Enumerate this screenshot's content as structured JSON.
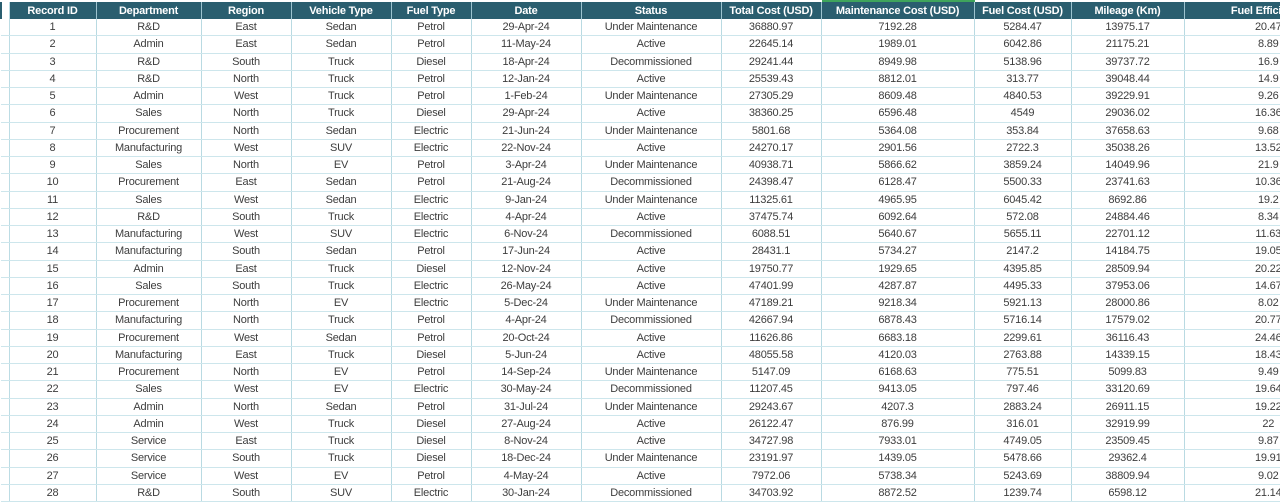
{
  "app": {
    "type": "spreadsheet-data-table"
  },
  "colors": {
    "header_bg": "#2A5E6F",
    "header_text": "#FFFFFF",
    "grid_line_vertical": "#B9DAE2",
    "grid_line_horizontal": "#CDE6EC",
    "accent_green": "#3FA45C",
    "cell_text": "#3D3D3D",
    "background": "#FFFFFF"
  },
  "table": {
    "columns": [
      {
        "key": "record_id",
        "label": "Record ID"
      },
      {
        "key": "department",
        "label": "Department"
      },
      {
        "key": "region",
        "label": "Region"
      },
      {
        "key": "vehicle_type",
        "label": "Vehicle Type"
      },
      {
        "key": "fuel_type",
        "label": "Fuel Type"
      },
      {
        "key": "date",
        "label": "Date"
      },
      {
        "key": "status",
        "label": "Status"
      },
      {
        "key": "total_cost_usd",
        "label": "Total Cost (USD)"
      },
      {
        "key": "maintenance_cost_usd",
        "label": "Maintenance Cost (USD)",
        "accent_top": true
      },
      {
        "key": "fuel_cost_usd",
        "label": "Fuel Cost (USD)"
      },
      {
        "key": "mileage_km",
        "label": "Mileage (Km)"
      },
      {
        "key": "fuel_efficiency",
        "label": "Fuel Efficiency",
        "clipped_right": true
      }
    ],
    "rows": [
      [
        "1",
        "R&D",
        "East",
        "Sedan",
        "Petrol",
        "29-Apr-24",
        "Under Maintenance",
        "36880.97",
        "7192.28",
        "5284.47",
        "13975.17",
        "20.47"
      ],
      [
        "2",
        "Admin",
        "East",
        "Sedan",
        "Petrol",
        "11-May-24",
        "Active",
        "22645.14",
        "1989.01",
        "6042.86",
        "21175.21",
        "8.89"
      ],
      [
        "3",
        "R&D",
        "South",
        "Truck",
        "Diesel",
        "18-Apr-24",
        "Decommissioned",
        "29241.44",
        "8949.98",
        "5138.96",
        "39737.72",
        "16.9"
      ],
      [
        "4",
        "R&D",
        "North",
        "Truck",
        "Petrol",
        "12-Jan-24",
        "Active",
        "25539.43",
        "8812.01",
        "313.77",
        "39048.44",
        "14.9"
      ],
      [
        "5",
        "Admin",
        "West",
        "Truck",
        "Petrol",
        "1-Feb-24",
        "Under Maintenance",
        "27305.29",
        "8609.48",
        "4840.53",
        "39229.91",
        "9.26"
      ],
      [
        "6",
        "Sales",
        "North",
        "Truck",
        "Diesel",
        "29-Apr-24",
        "Active",
        "38360.25",
        "6596.48",
        "4549",
        "29036.02",
        "16.36"
      ],
      [
        "7",
        "Procurement",
        "North",
        "Sedan",
        "Electric",
        "21-Jun-24",
        "Under Maintenance",
        "5801.68",
        "5364.08",
        "353.84",
        "37658.63",
        "9.68"
      ],
      [
        "8",
        "Manufacturing",
        "West",
        "SUV",
        "Electric",
        "22-Nov-24",
        "Active",
        "24270.17",
        "2901.56",
        "2722.3",
        "35038.26",
        "13.52"
      ],
      [
        "9",
        "Sales",
        "North",
        "EV",
        "Petrol",
        "3-Apr-24",
        "Under Maintenance",
        "40938.71",
        "5866.62",
        "3859.24",
        "14049.96",
        "21.9"
      ],
      [
        "10",
        "Procurement",
        "East",
        "Sedan",
        "Petrol",
        "21-Aug-24",
        "Decommissioned",
        "24398.47",
        "6128.47",
        "5500.33",
        "23741.63",
        "10.36"
      ],
      [
        "11",
        "Sales",
        "West",
        "Sedan",
        "Electric",
        "9-Jan-24",
        "Under Maintenance",
        "11325.61",
        "4965.95",
        "6045.42",
        "8692.86",
        "19.2"
      ],
      [
        "12",
        "R&D",
        "South",
        "Truck",
        "Electric",
        "4-Apr-24",
        "Active",
        "37475.74",
        "6092.64",
        "572.08",
        "24884.46",
        "8.34"
      ],
      [
        "13",
        "Manufacturing",
        "West",
        "SUV",
        "Electric",
        "6-Nov-24",
        "Decommissioned",
        "6088.51",
        "5640.67",
        "5655.11",
        "22701.12",
        "11.63"
      ],
      [
        "14",
        "Manufacturing",
        "South",
        "Sedan",
        "Petrol",
        "17-Jun-24",
        "Active",
        "28431.1",
        "5734.27",
        "2147.2",
        "14184.75",
        "19.05"
      ],
      [
        "15",
        "Admin",
        "East",
        "Truck",
        "Diesel",
        "12-Nov-24",
        "Active",
        "19750.77",
        "1929.65",
        "4395.85",
        "28509.94",
        "20.22"
      ],
      [
        "16",
        "Sales",
        "South",
        "Truck",
        "Electric",
        "26-May-24",
        "Active",
        "47401.99",
        "4287.87",
        "4495.33",
        "37953.06",
        "14.67"
      ],
      [
        "17",
        "Procurement",
        "North",
        "EV",
        "Electric",
        "5-Dec-24",
        "Under Maintenance",
        "47189.21",
        "9218.34",
        "5921.13",
        "28000.86",
        "8.02"
      ],
      [
        "18",
        "Manufacturing",
        "North",
        "Truck",
        "Petrol",
        "4-Apr-24",
        "Decommissioned",
        "42667.94",
        "6878.43",
        "5716.14",
        "17579.02",
        "20.77"
      ],
      [
        "19",
        "Procurement",
        "West",
        "Sedan",
        "Petrol",
        "20-Oct-24",
        "Active",
        "11626.86",
        "6683.18",
        "2299.61",
        "36116.43",
        "24.46"
      ],
      [
        "20",
        "Manufacturing",
        "East",
        "Truck",
        "Diesel",
        "5-Jun-24",
        "Active",
        "48055.58",
        "4120.03",
        "2763.88",
        "14339.15",
        "18.43"
      ],
      [
        "21",
        "Procurement",
        "North",
        "EV",
        "Petrol",
        "14-Sep-24",
        "Under Maintenance",
        "5147.09",
        "6168.63",
        "775.51",
        "5099.83",
        "9.49"
      ],
      [
        "22",
        "Sales",
        "West",
        "EV",
        "Electric",
        "30-May-24",
        "Decommissioned",
        "11207.45",
        "9413.05",
        "797.46",
        "33120.69",
        "19.64"
      ],
      [
        "23",
        "Admin",
        "North",
        "Sedan",
        "Petrol",
        "31-Jul-24",
        "Under Maintenance",
        "29243.67",
        "4207.3",
        "2883.24",
        "26911.15",
        "19.22"
      ],
      [
        "24",
        "Admin",
        "West",
        "Truck",
        "Diesel",
        "27-Aug-24",
        "Active",
        "26122.47",
        "876.99",
        "316.01",
        "32919.99",
        "22"
      ],
      [
        "25",
        "Service",
        "East",
        "Truck",
        "Diesel",
        "8-Nov-24",
        "Active",
        "34727.98",
        "7933.01",
        "4749.05",
        "23509.45",
        "9.87"
      ],
      [
        "26",
        "Service",
        "South",
        "Truck",
        "Diesel",
        "18-Dec-24",
        "Under Maintenance",
        "23191.97",
        "1439.05",
        "5478.66",
        "29362.4",
        "19.91"
      ],
      [
        "27",
        "Service",
        "West",
        "EV",
        "Petrol",
        "4-May-24",
        "Active",
        "7972.06",
        "5738.34",
        "5243.69",
        "38809.94",
        "9.02"
      ],
      [
        "28",
        "R&D",
        "South",
        "SUV",
        "Electric",
        "30-Jan-24",
        "Decommissioned",
        "34703.92",
        "8872.52",
        "1239.74",
        "6598.12",
        "21.14"
      ]
    ]
  }
}
